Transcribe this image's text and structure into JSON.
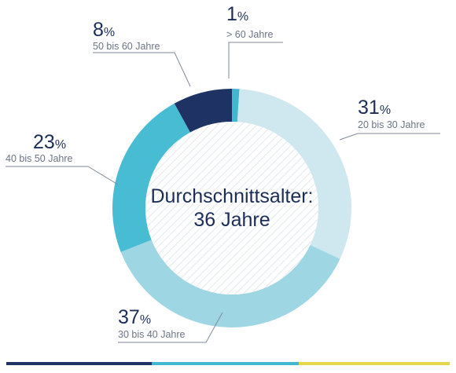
{
  "chart_data": {
    "type": "donut",
    "title": "",
    "center_label": [
      "Durchschnittsalter:",
      "36 Jahre"
    ],
    "unit": "%",
    "slices": [
      {
        "label": "> 60 Jahre",
        "value": 1,
        "value_text": "1",
        "color": "#3fb8d0"
      },
      {
        "label": "20 bis 30 Jahre",
        "value": 31,
        "value_text": "31",
        "color": "#cfe7ef"
      },
      {
        "label": "30 bis 40 Jahre",
        "value": 37,
        "value_text": "37",
        "color": "#9fd6e4"
      },
      {
        "label": "40 bis 50 Jahre",
        "value": 23,
        "value_text": "23",
        "color": "#48bcd3"
      },
      {
        "label": "50 bis 60 Jahre",
        "value": 8,
        "value_text": "8",
        "color": "#1e3263"
      }
    ],
    "start_angle_deg": 0,
    "direction": "clockwise",
    "center_fill": "hatched"
  },
  "footer_bar": {
    "colors": [
      "#1e3263",
      "#3fb8d0",
      "#e6d64a"
    ]
  }
}
